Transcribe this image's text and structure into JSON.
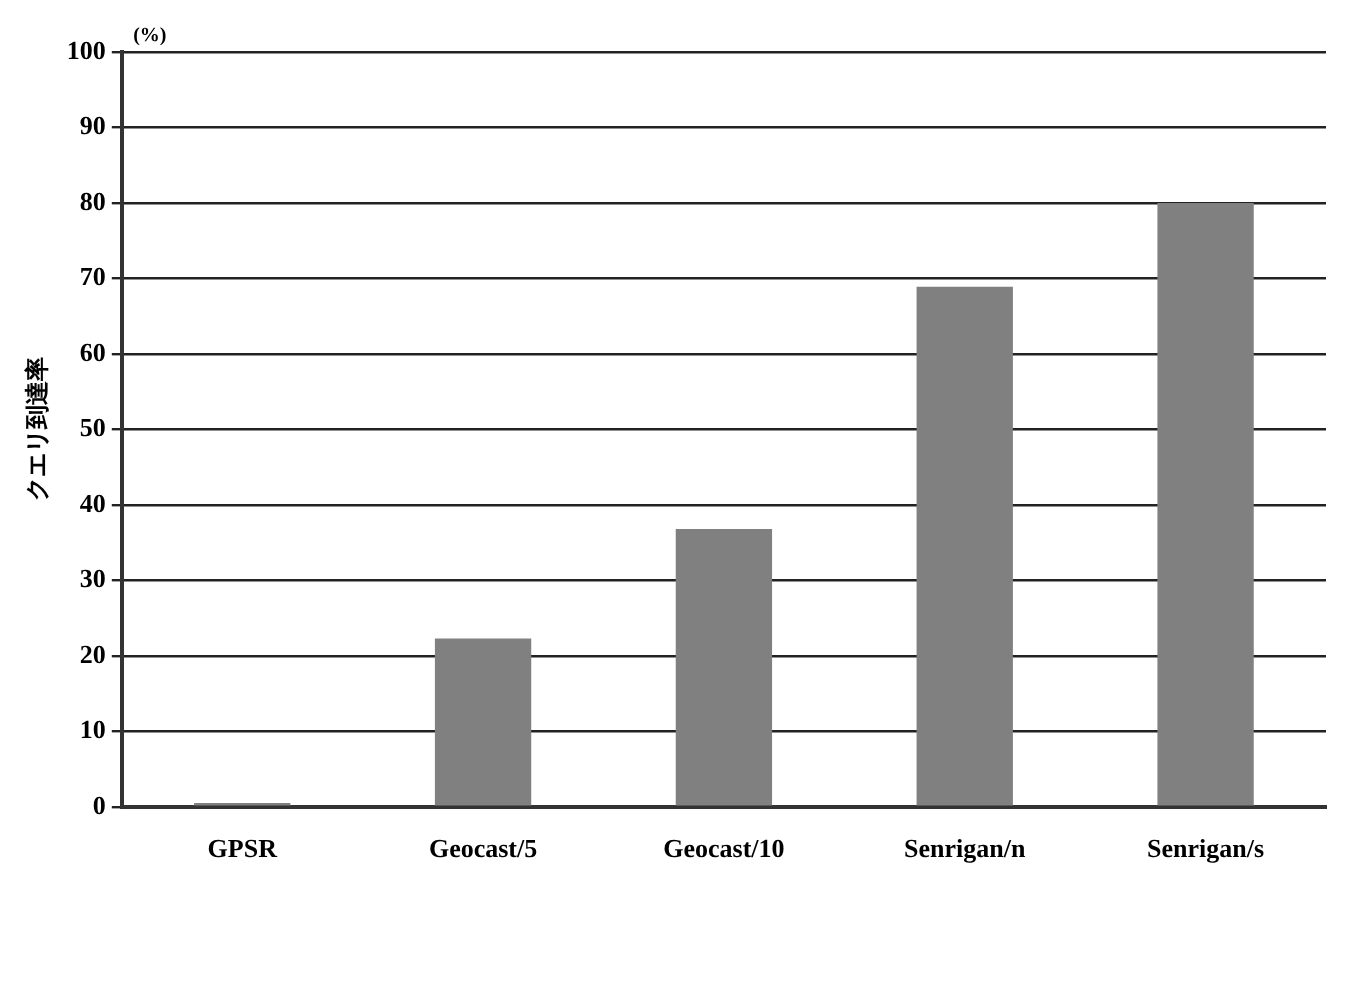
{
  "chart_data": {
    "type": "bar",
    "ylabel": "クエリ到達率",
    "annotations": [
      "(%)"
    ],
    "categories": [
      "GPSR",
      "Geocast/5",
      "Geocast/10",
      "Senrigan/n",
      "Senrigan/s"
    ],
    "values": [
      0.5,
      22.3,
      36.8,
      68.9,
      80
    ],
    "color": "#808080",
    "ylim": [
      0,
      100
    ],
    "yticks": [
      0,
      10,
      20,
      30,
      40,
      50,
      60,
      70,
      80,
      90,
      100
    ],
    "grid": "y"
  }
}
